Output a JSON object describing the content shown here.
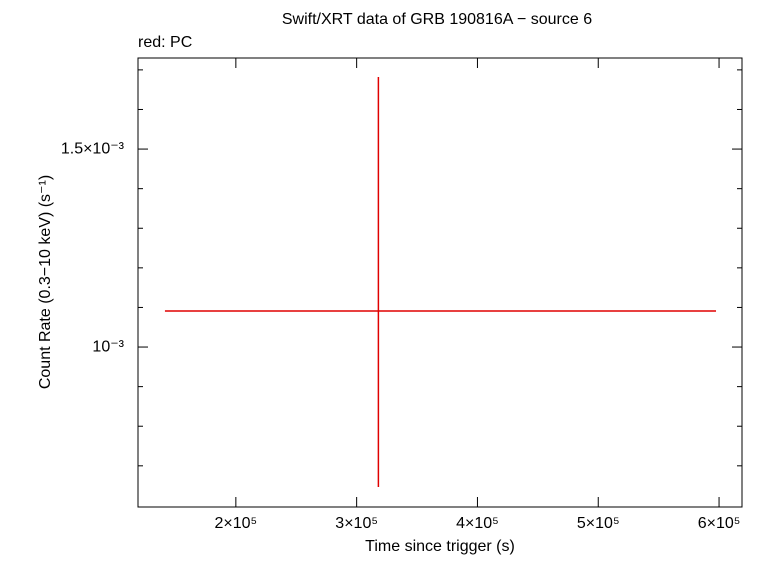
{
  "chart_data": {
    "type": "errorbar",
    "title": "Swift/XRT data of GRB 190816A − source 6",
    "subtitle": "red: PC",
    "x_label": "Time since trigger (s)",
    "y_label": "Count Rate (0.3−10 keV) (s⁻¹)",
    "series": [
      {
        "name": "PC",
        "color": "#e00000",
        "x": [
          318000
        ],
        "values": [
          0.001091
        ],
        "x_minus": [
          176700
        ],
        "x_plus": [
          279500
        ],
        "y_minus": [
          0.0004445
        ],
        "y_plus": [
          0.000591
        ]
      }
    ],
    "xlim": [
      119000,
      619000
    ],
    "ylim": [
      0.000596,
      0.00173
    ],
    "xticks": [
      {
        "value": 200000,
        "label": "2×10⁵"
      },
      {
        "value": 300000,
        "label": "3×10⁵"
      },
      {
        "value": 400000,
        "label": "4×10⁵"
      },
      {
        "value": 500000,
        "label": "5×10⁵"
      },
      {
        "value": 600000,
        "label": "6×10⁵"
      }
    ],
    "yticks": [
      {
        "value": 0.001,
        "label": "10⁻³"
      },
      {
        "value": 0.0015,
        "label": "1.5×10⁻³"
      }
    ],
    "yminorticks": [
      0.0007,
      0.0008,
      0.0009,
      0.0011,
      0.0012,
      0.0013,
      0.0014,
      0.0016,
      0.0017
    ]
  }
}
